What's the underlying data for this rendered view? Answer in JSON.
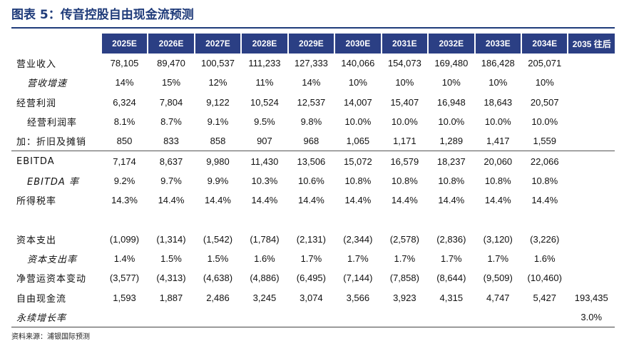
{
  "title": "图表 5：传音控股自由现金流预测",
  "columns": [
    "2025E",
    "2026E",
    "2027E",
    "2028E",
    "2029E",
    "2030E",
    "2031E",
    "2032E",
    "2033E",
    "2034E",
    "2035 往后"
  ],
  "rows": [
    {
      "label": "营业收入",
      "values": [
        "78,105",
        "89,470",
        "100,537",
        "111,233",
        "127,333",
        "140,066",
        "154,073",
        "169,480",
        "186,428",
        "205,071",
        ""
      ]
    },
    {
      "label": "营收增速",
      "values": [
        "14%",
        "15%",
        "12%",
        "11%",
        "14%",
        "10%",
        "10%",
        "10%",
        "10%",
        "10%",
        ""
      ]
    },
    {
      "label": "经营利润",
      "values": [
        "6,324",
        "7,804",
        "9,122",
        "10,524",
        "12,537",
        "14,007",
        "15,407",
        "16,948",
        "18,643",
        "20,507",
        ""
      ]
    },
    {
      "label": "经营利润率",
      "values": [
        "8.1%",
        "8.7%",
        "9.1%",
        "9.5%",
        "9.8%",
        "10.0%",
        "10.0%",
        "10.0%",
        "10.0%",
        "10.0%",
        ""
      ]
    },
    {
      "label": "加：折旧及摊销",
      "values": [
        "850",
        "833",
        "858",
        "907",
        "968",
        "1,065",
        "1,171",
        "1,289",
        "1,417",
        "1,559",
        ""
      ]
    },
    {
      "label": "EBITDA",
      "values": [
        "7,174",
        "8,637",
        "9,980",
        "11,430",
        "13,506",
        "15,072",
        "16,579",
        "18,237",
        "20,060",
        "22,066",
        ""
      ]
    },
    {
      "label": "EBITDA 率",
      "values": [
        "9.2%",
        "9.7%",
        "9.9%",
        "10.3%",
        "10.6%",
        "10.8%",
        "10.8%",
        "10.8%",
        "10.8%",
        "10.8%",
        ""
      ]
    },
    {
      "label": "所得税率",
      "values": [
        "14.3%",
        "14.4%",
        "14.4%",
        "14.4%",
        "14.4%",
        "14.4%",
        "14.4%",
        "14.4%",
        "14.4%",
        "14.4%",
        ""
      ]
    },
    {
      "label": "",
      "values": [
        "",
        "",
        "",
        "",
        "",
        "",
        "",
        "",
        "",
        "",
        ""
      ]
    },
    {
      "label": "资本支出",
      "values": [
        "(1,099)",
        "(1,314)",
        "(1,542)",
        "(1,784)",
        "(2,131)",
        "(2,344)",
        "(2,578)",
        "(2,836)",
        "(3,120)",
        "(3,226)",
        ""
      ]
    },
    {
      "label": "资本支出率",
      "values": [
        "1.4%",
        "1.5%",
        "1.5%",
        "1.6%",
        "1.7%",
        "1.7%",
        "1.7%",
        "1.7%",
        "1.7%",
        "1.6%",
        ""
      ]
    },
    {
      "label": "净营运资本变动",
      "values": [
        "(3,577)",
        "(4,313)",
        "(4,638)",
        "(4,886)",
        "(6,495)",
        "(7,144)",
        "(7,858)",
        "(8,644)",
        "(9,509)",
        "(10,460)",
        ""
      ]
    },
    {
      "label": "自由现金流",
      "values": [
        "1,593",
        "1,887",
        "2,486",
        "3,245",
        "3,074",
        "3,566",
        "3,923",
        "4,315",
        "4,747",
        "5,427",
        "193,435"
      ]
    },
    {
      "label": "永续增长率",
      "values": [
        "",
        "",
        "",
        "",
        "",
        "",
        "",
        "",
        "",
        "",
        "3.0%"
      ]
    }
  ],
  "source": "资料来源：浦银国际预测"
}
